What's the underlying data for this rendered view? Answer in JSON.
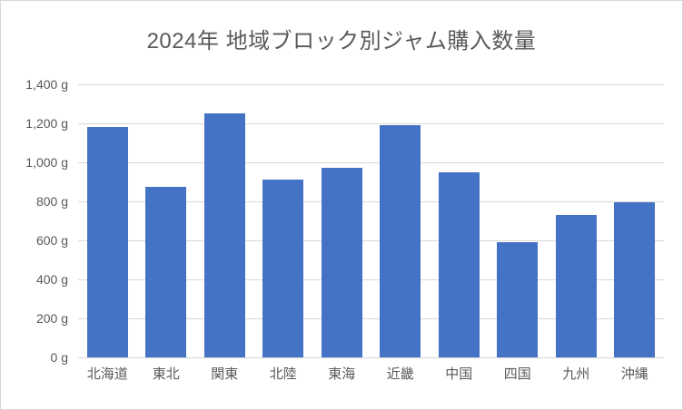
{
  "chart_data": {
    "type": "bar",
    "title": "2024年 地域ブロック別ジャム購入数量",
    "categories": [
      "北海道",
      "東北",
      "関東",
      "北陸",
      "東海",
      "近畿",
      "中国",
      "四国",
      "九州",
      "沖縄"
    ],
    "values": [
      1180,
      875,
      1250,
      910,
      970,
      1190,
      950,
      590,
      730,
      795
    ],
    "unit": "g",
    "xlabel": "",
    "ylabel": "",
    "ylim": [
      0,
      1400
    ],
    "y_ticks": [
      0,
      200,
      400,
      600,
      800,
      1000,
      1200,
      1400
    ],
    "y_tick_labels": [
      "0 g",
      "200 g",
      "400 g",
      "600 g",
      "800 g",
      "1,000 g",
      "1,200 g",
      "1,400 g"
    ],
    "grid": true,
    "legend": false,
    "colors": {
      "bar": "#4472C4",
      "gridline": "#d9d9d9",
      "axis_line": "#d9d9d9",
      "text": "#595959",
      "background": "#ffffff"
    }
  }
}
